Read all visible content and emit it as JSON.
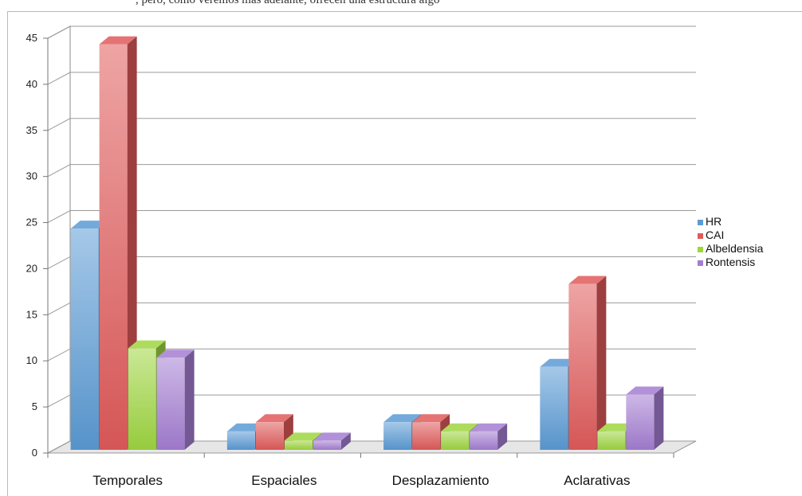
{
  "caption": ", pero, como veremos más adelante, ofrecen una estructura algo",
  "chart_data": {
    "type": "bar",
    "categories": [
      "Temporales",
      "Espaciales",
      "Desplazamiento",
      "Aclarativas"
    ],
    "series": [
      {
        "name": "HR",
        "values": [
          24,
          2,
          3,
          9
        ],
        "color": "#5b9bd5"
      },
      {
        "name": "CAI",
        "values": [
          44,
          3,
          3,
          18
        ],
        "color": "#e05a5a"
      },
      {
        "name": "Albeldensia",
        "values": [
          11,
          1,
          2,
          2
        ],
        "color": "#9ed640"
      },
      {
        "name": "Rontensis",
        "values": [
          10,
          1,
          2,
          6
        ],
        "color": "#a47dd2"
      }
    ],
    "yticks": [
      0,
      5,
      10,
      15,
      20,
      25,
      30,
      35,
      40,
      45
    ],
    "ylim": [
      0,
      45
    ],
    "grid": true,
    "legend": "right"
  }
}
